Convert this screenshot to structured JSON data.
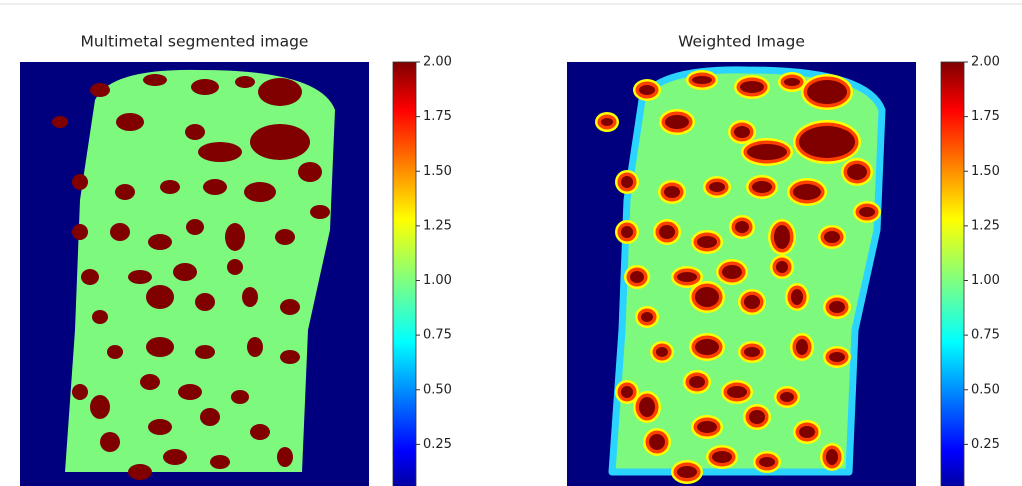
{
  "chart_data": [
    {
      "type": "heatmap",
      "title": "Multimetal segmented image",
      "colormap": "jet",
      "clim": [
        0,
        2
      ],
      "cticks": [
        0.25,
        {
          "value": 0.5,
          "label": "0.50"
        },
        0.75,
        {
          "value": 1,
          "label": "1.00"
        },
        1.25,
        {
          "value": 1.5,
          "label": "1.50"
        },
        1.75,
        {
          "value": 2,
          "label": "2.00"
        }
      ]
    },
    {
      "type": "heatmap",
      "title": "Weighted Image",
      "colormap": "jet",
      "clim": [
        0,
        2
      ],
      "cticks": [
        0.25,
        {
          "value": 0.5,
          "label": "0.50"
        },
        0.75,
        {
          "value": 1,
          "label": "1.00"
        },
        1.25,
        {
          "value": 1.5,
          "label": "1.50"
        },
        1.75,
        {
          "value": 2,
          "label": "2.00"
        }
      ]
    }
  ]
}
